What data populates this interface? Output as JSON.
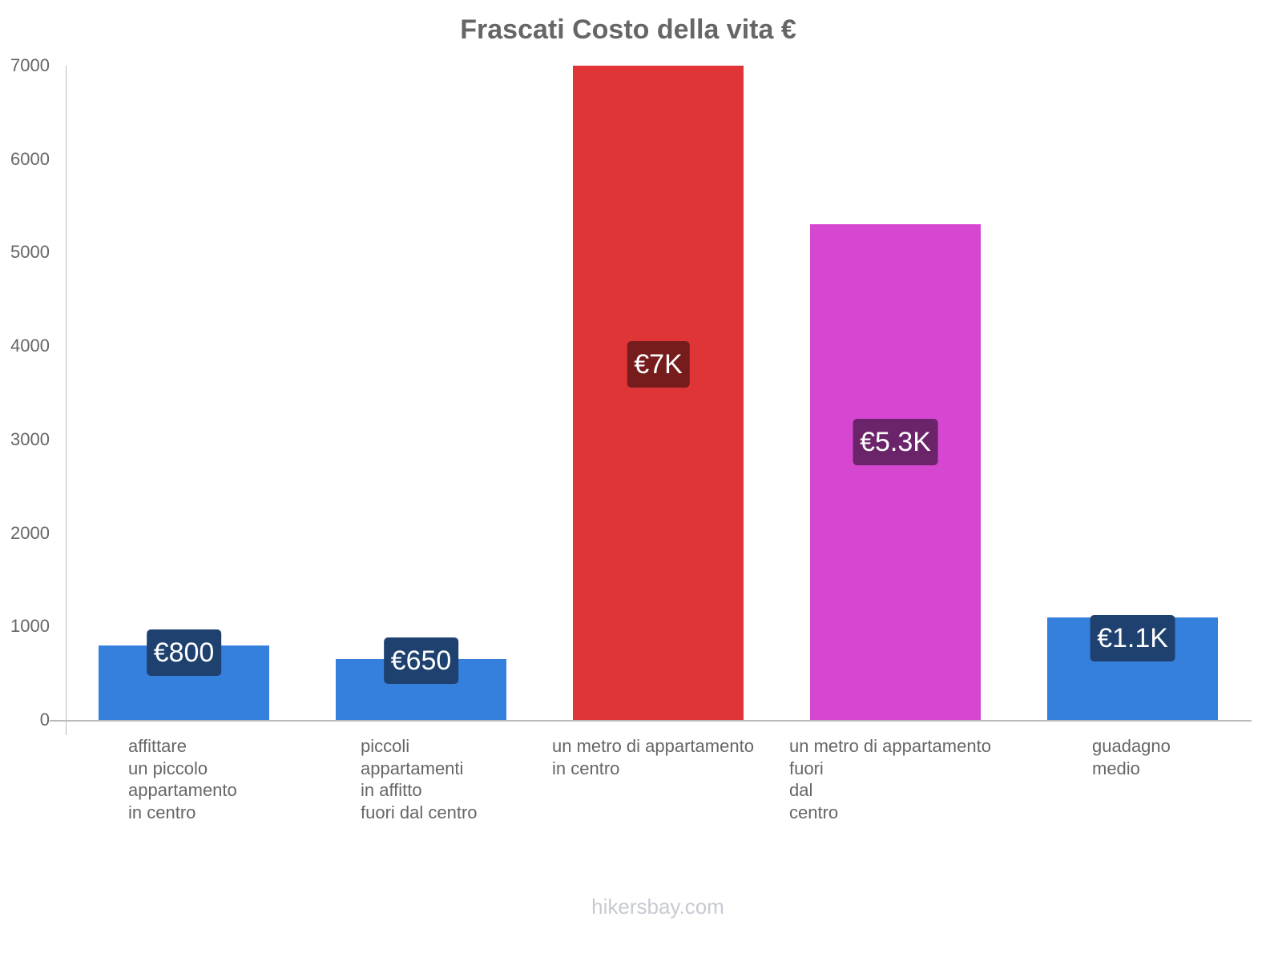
{
  "chart_data": {
    "type": "bar",
    "title": "Frascati Costo della vita €",
    "xlabel": "",
    "ylabel": "",
    "ylim": [
      0,
      7000
    ],
    "yticks": [
      "0",
      "1000",
      "2000",
      "3000",
      "4000",
      "5000",
      "6000",
      "7000"
    ],
    "grid": false,
    "legend": "none",
    "categories": [
      "affittare un piccolo appartamento in centro",
      "piccoli appartamenti in affitto fuori dal centro",
      "un metro di appartamento in centro",
      "un metro di appartamento fuori dal centro",
      "guadagno medio"
    ],
    "values": [
      800,
      650,
      7000,
      5300,
      1100
    ],
    "data_labels": [
      "€800",
      "€650",
      "€7K",
      "€5.3K",
      "€1.1K"
    ],
    "bar_colors": [
      "#3580dd",
      "#3580dd",
      "#e03537",
      "#d647d1",
      "#3580dd"
    ],
    "label_colors": [
      "#1e416f",
      "#1e416f",
      "#761c1c",
      "#6b236a",
      "#1e416f"
    ]
  },
  "axis_labels": {
    "x": [
      "affittare\nun piccolo\nappartamento\nin centro",
      "piccoli\nappartamenti\nin affitto\nfuori dal centro",
      "un metro di appartamento\nin centro",
      "un metro di appartamento\nfuori\ndal\ncentro",
      "guadagno\nmedio"
    ]
  },
  "footer": {
    "watermark": "hikersbay.com"
  }
}
